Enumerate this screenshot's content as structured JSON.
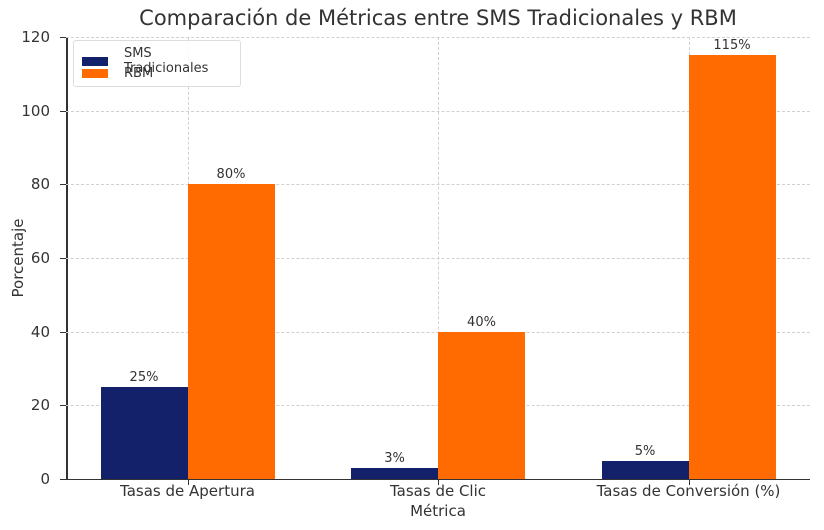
{
  "chart_data": {
    "type": "bar",
    "title": "Comparación de Métricas entre SMS Tradicionales y RBM",
    "xlabel": "Métrica",
    "ylabel": "Porcentaje",
    "categories": [
      "Tasas de Apertura",
      "Tasas de Clic",
      "Tasas de Conversión (%)"
    ],
    "series": [
      {
        "name": "SMS Tradicionales",
        "color": "#12216a",
        "values": [
          25,
          3,
          5
        ],
        "labels": [
          "25%",
          "3%",
          "5%"
        ]
      },
      {
        "name": "RBM",
        "color": "#ff6b00",
        "values": [
          80,
          40,
          115
        ],
        "labels": [
          "80%",
          "40%",
          "115%"
        ]
      }
    ],
    "ylim": [
      0,
      120
    ],
    "yticks": [
      0,
      20,
      40,
      60,
      80,
      100,
      120
    ],
    "grid": true,
    "legend_position": "upper left"
  }
}
